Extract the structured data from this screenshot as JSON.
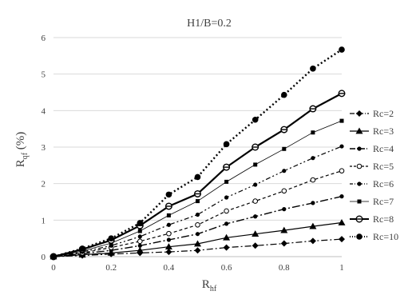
{
  "chart_data": {
    "type": "line",
    "title": "H1/B=0.2",
    "xlabel": {
      "main": "R",
      "sub": "hf"
    },
    "ylabel": {
      "main": "R",
      "sub": "qf",
      "suffix": " (%)"
    },
    "xlim": [
      0,
      1
    ],
    "ylim": [
      0,
      6
    ],
    "xticks": [
      0,
      0.2,
      0.4,
      0.6,
      0.8,
      1
    ],
    "yticks": [
      0,
      1,
      2,
      3,
      4,
      5,
      6
    ],
    "xtick_labels": [
      "0",
      "0.2",
      "0.4",
      "0.6",
      "0.8",
      "1"
    ],
    "ytick_labels": [
      "0",
      "1",
      "2",
      "3",
      "4",
      "5",
      "6"
    ],
    "grid": "horizontal",
    "legend": "right",
    "x": [
      0,
      0.1,
      0.2,
      0.3,
      0.4,
      0.5,
      0.6,
      0.7,
      0.8,
      0.9,
      1.0
    ],
    "series": [
      {
        "name": "Rc=2",
        "marker": "diamond",
        "dash": "8,3,2,3",
        "width": 1.2,
        "values": [
          0,
          0.03,
          0.07,
          0.1,
          0.13,
          0.17,
          0.25,
          0.3,
          0.36,
          0.43,
          0.48
        ]
      },
      {
        "name": "Rc=3",
        "marker": "triangle",
        "dash": "",
        "width": 1.2,
        "values": [
          0,
          0.05,
          0.1,
          0.17,
          0.27,
          0.35,
          0.52,
          0.62,
          0.72,
          0.83,
          0.93
        ]
      },
      {
        "name": "Rc=4",
        "marker": "dot",
        "dash": "10,3,2,3",
        "width": 1.4,
        "values": [
          0,
          0.08,
          0.17,
          0.3,
          0.46,
          0.62,
          0.9,
          1.1,
          1.3,
          1.47,
          1.65
        ]
      },
      {
        "name": "Rc=5",
        "marker": "circle-open",
        "dash": "4,3",
        "width": 1.2,
        "values": [
          0,
          0.1,
          0.25,
          0.42,
          0.63,
          0.87,
          1.25,
          1.52,
          1.8,
          2.1,
          2.35
        ]
      },
      {
        "name": "Rc=6",
        "marker": "dot",
        "dash": "6,3,2,3,2,3",
        "width": 1.2,
        "values": [
          0,
          0.13,
          0.3,
          0.55,
          0.87,
          1.15,
          1.62,
          1.97,
          2.35,
          2.7,
          3.02
        ]
      },
      {
        "name": "Rc=7",
        "marker": "square",
        "dash": "",
        "width": 0.8,
        "values": [
          0,
          0.15,
          0.37,
          0.7,
          1.13,
          1.52,
          2.05,
          2.52,
          2.95,
          3.4,
          3.72
        ]
      },
      {
        "name": "Rc=8",
        "marker": "circle-double",
        "dash": "",
        "width": 2.2,
        "values": [
          0,
          0.2,
          0.45,
          0.85,
          1.38,
          1.72,
          2.45,
          3.0,
          3.48,
          4.05,
          4.47
        ]
      },
      {
        "name": "Rc=10",
        "marker": "circle-filled",
        "dash": "2,3",
        "width": 2.4,
        "values": [
          0,
          0.22,
          0.5,
          0.92,
          1.7,
          2.18,
          3.08,
          3.75,
          4.43,
          5.15,
          5.67
        ]
      }
    ],
    "colors": {
      "line": "#000000",
      "grid": "#d9d9d9",
      "axis": "#bfbfbf",
      "text": "#404040"
    }
  }
}
